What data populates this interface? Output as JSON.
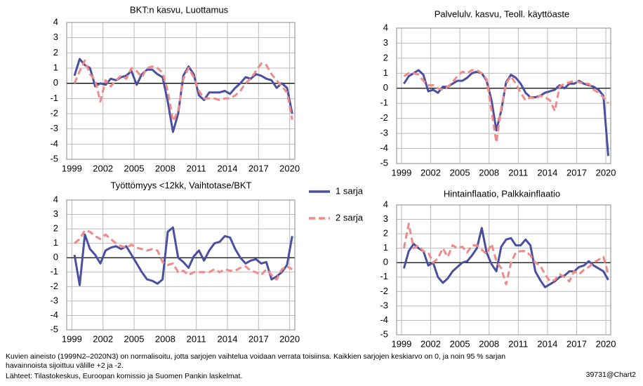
{
  "chart_data": [
    {
      "type": "line",
      "title": "BKT:n kasvu, Luottamus",
      "x": [
        1999.25,
        1999.75,
        2000.25,
        2000.75,
        2001.25,
        2001.75,
        2002.25,
        2002.75,
        2003.25,
        2003.75,
        2004.25,
        2004.75,
        2005.25,
        2005.75,
        2006.25,
        2006.75,
        2007.25,
        2007.75,
        2008.25,
        2008.75,
        2009.25,
        2009.75,
        2010.25,
        2010.75,
        2011.25,
        2011.75,
        2012.25,
        2012.75,
        2013.25,
        2013.75,
        2014.25,
        2014.75,
        2015.25,
        2015.75,
        2016.25,
        2016.75,
        2017.25,
        2017.75,
        2018.25,
        2018.75,
        2019.25,
        2019.75,
        2020.25
      ],
      "xlim": [
        1998.5,
        2020.5
      ],
      "xticks": [
        1999,
        2002,
        2005,
        2008,
        2011,
        2014,
        2017,
        2020
      ],
      "ylim": [
        -5,
        4
      ],
      "yticks": [
        -5,
        -4,
        -3,
        -2,
        -1,
        0,
        1,
        2,
        3,
        4
      ],
      "grid": true,
      "series": [
        {
          "name": "1 sarja",
          "color": "#4a4fa0",
          "values": [
            0.5,
            1.6,
            1.2,
            1.0,
            -0.2,
            0.0,
            -0.1,
            0.3,
            0.2,
            0.4,
            0.5,
            0.8,
            -0.1,
            0.6,
            0.9,
            0.9,
            0.6,
            0.4,
            -1.2,
            -3.2,
            -2.0,
            0.5,
            1.1,
            0.6,
            -0.8,
            -1.1,
            -0.6,
            -0.6,
            -0.6,
            -0.5,
            -0.7,
            -0.3,
            0.0,
            0.4,
            0.3,
            0.6,
            0.5,
            0.3,
            0.2,
            -0.3,
            0.0,
            -0.3,
            -2.0
          ]
        },
        {
          "name": "2 sarja",
          "color": "#f08a8a",
          "values": [
            0.0,
            0.8,
            1.5,
            0.6,
            0.2,
            -1.2,
            0.2,
            -0.2,
            0.2,
            0.5,
            0.3,
            1.0,
            0.8,
            0.4,
            1.0,
            1.1,
            1.0,
            0.7,
            -0.5,
            -2.5,
            -1.8,
            0.3,
            1.0,
            0.4,
            -0.5,
            -1.0,
            -1.0,
            -1.0,
            -1.1,
            -1.0,
            -1.0,
            -0.8,
            -0.5,
            0.0,
            0.3,
            0.8,
            1.3,
            1.2,
            0.6,
            0.2,
            -0.2,
            -0.6,
            -2.4
          ]
        }
      ]
    },
    {
      "type": "line",
      "title": "Palvelulv. kasvu, Teoll. käyttöaste",
      "x": [
        1999.25,
        1999.75,
        2000.25,
        2000.75,
        2001.25,
        2001.75,
        2002.25,
        2002.75,
        2003.25,
        2003.75,
        2004.25,
        2004.75,
        2005.25,
        2005.75,
        2006.25,
        2006.75,
        2007.25,
        2007.75,
        2008.25,
        2008.75,
        2009.25,
        2009.75,
        2010.25,
        2010.75,
        2011.25,
        2011.75,
        2012.25,
        2012.75,
        2013.25,
        2013.75,
        2014.25,
        2014.75,
        2015.25,
        2015.75,
        2016.25,
        2016.75,
        2017.25,
        2017.75,
        2018.25,
        2018.75,
        2019.25,
        2019.75,
        2020.25
      ],
      "xlim": [
        1998.5,
        2020.5
      ],
      "xticks": [
        1999,
        2002,
        2005,
        2008,
        2011,
        2014,
        2017,
        2020
      ],
      "ylim": [
        -5,
        4
      ],
      "yticks": [
        -5,
        -4,
        -3,
        -2,
        -1,
        0,
        1,
        2,
        3,
        4
      ],
      "grid": true,
      "series": [
        {
          "color": "#4a4fa0",
          "values": [
            0.3,
            0.8,
            1.0,
            1.2,
            0.9,
            -0.2,
            -0.1,
            -0.3,
            0.1,
            0.1,
            0.3,
            0.5,
            0.5,
            0.7,
            1.0,
            1.1,
            1.0,
            0.5,
            -0.8,
            -2.8,
            -1.5,
            0.4,
            0.9,
            0.7,
            0.3,
            -0.3,
            -0.6,
            -0.6,
            -0.5,
            -0.3,
            -0.2,
            -0.1,
            0.2,
            0.0,
            0.3,
            0.3,
            0.5,
            0.3,
            0.2,
            0.1,
            -0.1,
            -0.5,
            -4.5
          ]
        },
        {
          "color": "#f08a8a",
          "values": [
            0.8,
            1.0,
            1.0,
            0.9,
            0.5,
            0.2,
            0.2,
            0.0,
            -0.1,
            0.1,
            0.4,
            0.8,
            1.1,
            1.0,
            1.2,
            1.2,
            1.0,
            0.6,
            -1.5,
            -3.6,
            -1.3,
            0.3,
            0.8,
            0.3,
            -0.3,
            -0.8,
            -0.6,
            -0.7,
            -0.5,
            -0.6,
            -0.8,
            -1.5,
            0.1,
            0.3,
            0.4,
            0.5,
            0.4,
            0.3,
            0.3,
            -0.1,
            -0.3,
            -0.6,
            -1.0
          ]
        }
      ]
    },
    {
      "type": "line",
      "title": "Työttömyys <12kk, Vaihtotase/BKT",
      "x": [
        1999.25,
        1999.75,
        2000.25,
        2000.75,
        2001.25,
        2001.75,
        2002.25,
        2002.75,
        2003.25,
        2003.75,
        2004.25,
        2004.75,
        2005.25,
        2005.75,
        2006.25,
        2006.75,
        2007.25,
        2007.75,
        2008.25,
        2008.75,
        2009.25,
        2009.75,
        2010.25,
        2010.75,
        2011.25,
        2011.75,
        2012.25,
        2012.75,
        2013.25,
        2013.75,
        2014.25,
        2014.75,
        2015.25,
        2015.75,
        2016.25,
        2016.75,
        2017.25,
        2017.75,
        2018.25,
        2018.75,
        2019.25,
        2019.75,
        2020.25
      ],
      "xlim": [
        1998.5,
        2020.5
      ],
      "xticks": [
        1999,
        2002,
        2005,
        2008,
        2011,
        2014,
        2017,
        2020
      ],
      "ylim": [
        -5,
        4
      ],
      "yticks": [
        -5,
        -4,
        -3,
        -2,
        -1,
        0,
        1,
        2,
        3,
        4
      ],
      "grid": true,
      "series": [
        {
          "color": "#4a4fa0",
          "values": [
            0.2,
            -1.9,
            1.6,
            0.6,
            0.2,
            -0.4,
            0.5,
            0.7,
            0.8,
            0.6,
            0.8,
            0.2,
            -0.4,
            -1.0,
            -1.5,
            -1.6,
            -1.8,
            -1.5,
            1.8,
            2.1,
            0.0,
            -0.3,
            -0.7,
            0.1,
            0.5,
            -0.2,
            0.5,
            1.0,
            1.1,
            1.5,
            1.4,
            0.6,
            0.0,
            -0.4,
            -0.2,
            -0.1,
            -0.4,
            -0.3,
            -1.5,
            -1.3,
            -1.0,
            -0.5,
            1.5
          ]
        },
        {
          "color": "#f08a8a",
          "values": [
            1.0,
            1.3,
            1.9,
            1.8,
            1.5,
            1.3,
            1.6,
            1.3,
            1.0,
            0.8,
            0.7,
            0.9,
            0.7,
            0.6,
            0.5,
            0.6,
            0.5,
            -0.3,
            -0.5,
            -0.4,
            -1.0,
            -0.9,
            -1.2,
            -1.0,
            -1.0,
            -1.0,
            -1.0,
            -0.8,
            -1.0,
            -0.8,
            -0.9,
            -0.9,
            -0.7,
            -0.6,
            -0.9,
            -1.0,
            -1.2,
            -0.8,
            -1.2,
            -1.5,
            -0.8,
            -0.6,
            -0.8
          ]
        }
      ]
    },
    {
      "type": "line",
      "title": "Hintainflaatio, Palkkainflaatio",
      "x": [
        1999.25,
        1999.75,
        2000.25,
        2000.75,
        2001.25,
        2001.75,
        2002.25,
        2002.75,
        2003.25,
        2003.75,
        2004.25,
        2004.75,
        2005.25,
        2005.75,
        2006.25,
        2006.75,
        2007.25,
        2007.75,
        2008.25,
        2008.75,
        2009.25,
        2009.75,
        2010.25,
        2010.75,
        2011.25,
        2011.75,
        2012.25,
        2012.75,
        2013.25,
        2013.75,
        2014.25,
        2014.75,
        2015.25,
        2015.75,
        2016.25,
        2016.75,
        2017.25,
        2017.75,
        2018.25,
        2018.75,
        2019.25,
        2019.75,
        2020.25
      ],
      "xlim": [
        1998.5,
        2020.5
      ],
      "xticks": [
        1999,
        2002,
        2005,
        2008,
        2011,
        2014,
        2017,
        2020
      ],
      "ylim": [
        -5,
        4
      ],
      "yticks": [
        -5,
        -4,
        -3,
        -2,
        -1,
        0,
        1,
        2,
        3,
        4
      ],
      "grid": true,
      "series": [
        {
          "color": "#4a4fa0",
          "values": [
            -0.4,
            0.8,
            1.3,
            1.0,
            0.8,
            -0.2,
            0.0,
            -1.0,
            -1.4,
            -1.1,
            -0.6,
            -0.3,
            0.0,
            0.1,
            0.5,
            1.0,
            2.4,
            0.7,
            -0.1,
            -0.6,
            1.1,
            1.6,
            1.7,
            1.2,
            1.2,
            1.6,
            1.2,
            -0.6,
            -1.2,
            -1.7,
            -1.5,
            -1.3,
            -1.0,
            -0.9,
            -0.6,
            -0.6,
            -0.3,
            -0.2,
            0.1,
            -0.2,
            -0.4,
            -0.6,
            -1.2
          ]
        },
        {
          "color": "#f08a8a",
          "values": [
            1.0,
            2.7,
            1.0,
            1.2,
            0.8,
            0.7,
            0.0,
            0.3,
            1.0,
            0.4,
            1.2,
            1.0,
            1.1,
            0.7,
            1.2,
            1.2,
            0.9,
            0.6,
            1.3,
            0.1,
            -0.4,
            -1.5,
            0.0,
            0.7,
            0.8,
            0.8,
            0.5,
            0.0,
            -0.2,
            -0.8,
            -1.3,
            -1.2,
            -0.8,
            -1.0,
            -1.3,
            -0.6,
            -0.8,
            -0.5,
            -0.3,
            0.0,
            0.2,
            0.4,
            -0.8
          ]
        }
      ]
    }
  ],
  "notes": [
    "Kuvien aineisto (1999N2–2020N3) on normalisoitu, jotta sarjojen vaihtelua voidaan verrata toisiinsa. Kaikkien sarjojen keskiarvo on 0, ja noin 95 % sarjan",
    "havainnoista  sijoittuu välille +2 ja -2.",
    "Lähteet: Tilastokeskus, Euroopan komissio ja Suomen Pankin laskelmat."
  ],
  "code": "39731@Chart2"
}
